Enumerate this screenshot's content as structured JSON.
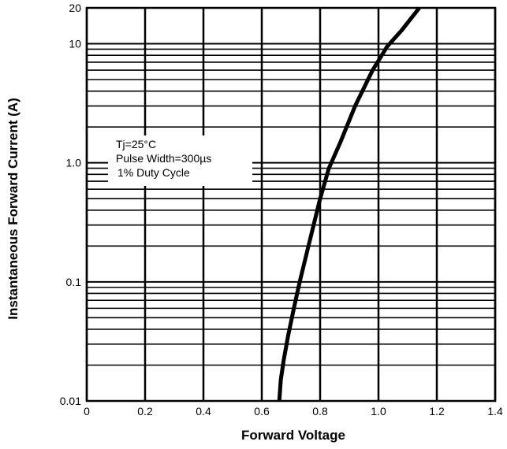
{
  "chart_data": {
    "type": "line",
    "title": "",
    "xlabel": "Forward Voltage",
    "ylabel": "Instantaneous Forward Current (A)",
    "x_scale": "linear",
    "y_scale": "log",
    "xlim": [
      0,
      1.4
    ],
    "ylim": [
      0.01,
      20
    ],
    "x_ticks": [
      0,
      0.2,
      0.4,
      0.6,
      0.8,
      1.0,
      1.2,
      1.4
    ],
    "x_tick_labels": [
      "0",
      "0.2",
      "0.4",
      "0.6",
      "0.8",
      "1.0",
      "1.2",
      "1.4"
    ],
    "y_ticks": [
      0.01,
      0.1,
      1.0,
      10,
      20
    ],
    "y_tick_labels": [
      "0.01",
      "0.1",
      "1.0",
      "10",
      "20"
    ],
    "grid": true,
    "series": [
      {
        "x": [
          0.66,
          0.665,
          0.675,
          0.69,
          0.71,
          0.73,
          0.76,
          0.8,
          0.83,
          0.87,
          0.92,
          0.98,
          1.03,
          1.08,
          1.14
        ],
        "y": [
          0.01,
          0.015,
          0.022,
          0.035,
          0.06,
          0.1,
          0.2,
          0.5,
          0.9,
          1.5,
          3.0,
          6.0,
          9.5,
          13.0,
          20.0
        ]
      }
    ],
    "annotations": [
      "Tj=25°C",
      "Pulse Width=300µs",
      "1% Duty Cycle"
    ]
  }
}
